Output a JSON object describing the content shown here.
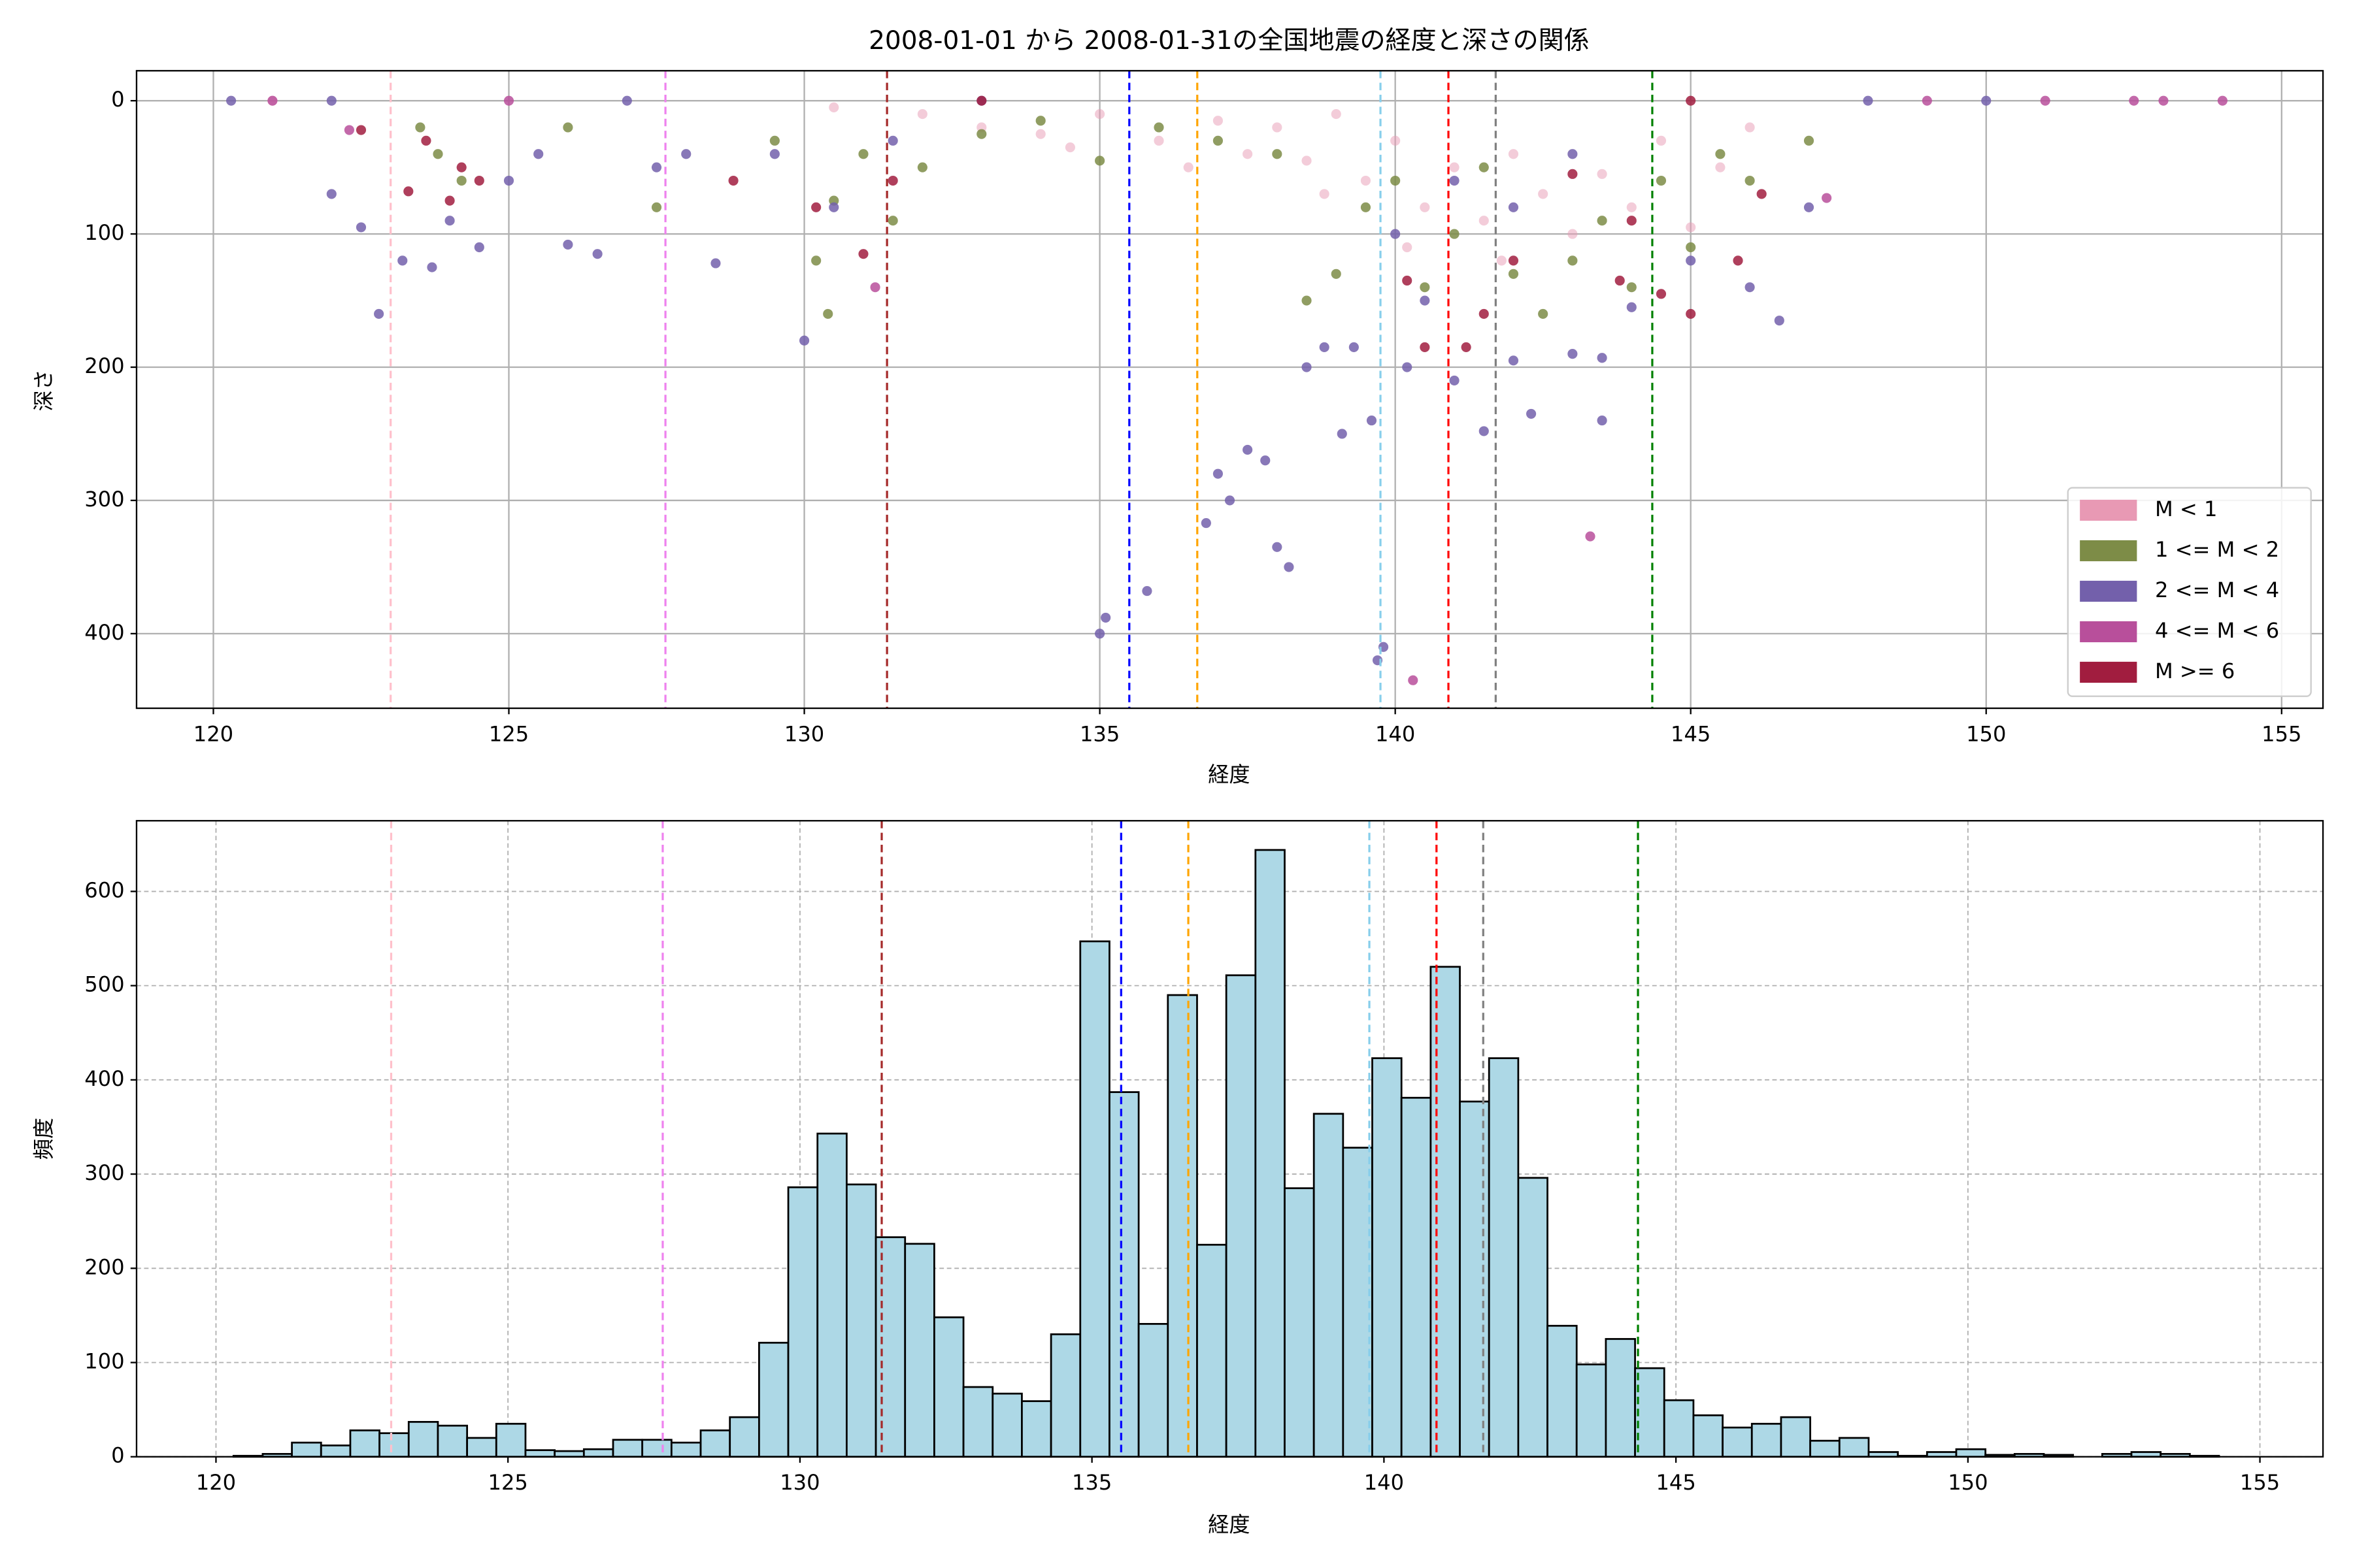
{
  "chart_data": [
    {
      "type": "scatter",
      "title": "2008-01-01 から 2008-01-31の全国地震の経度と深さの関係",
      "xlabel": "経度",
      "ylabel": "深さ",
      "xlim": [
        118.7,
        155.7
      ],
      "ylim": [
        456,
        -22.5
      ],
      "xticks": [
        120,
        125,
        130,
        135,
        140,
        145,
        150,
        155
      ],
      "yticks": [
        0,
        100,
        200,
        300,
        400
      ],
      "grid": true,
      "legend_loc": "lower right",
      "vlines": [
        {
          "x": 123.0,
          "color": "pink"
        },
        {
          "x": 127.65,
          "color": "violet"
        },
        {
          "x": 131.4,
          "color": "brown"
        },
        {
          "x": 135.5,
          "color": "blue"
        },
        {
          "x": 136.65,
          "color": "orange"
        },
        {
          "x": 139.75,
          "color": "skyblue"
        },
        {
          "x": 140.9,
          "color": "red"
        },
        {
          "x": 141.7,
          "color": "gray"
        },
        {
          "x": 144.35,
          "color": "green"
        }
      ],
      "series": [
        {
          "name": "M < 1",
          "color": "#e899b4",
          "x": [
            121.0,
            130.5,
            132,
            133,
            134,
            135,
            136,
            137,
            137.5,
            138,
            138.5,
            139,
            139.5,
            140,
            140.5,
            141,
            141.5,
            142,
            142.5,
            143,
            143.5,
            144,
            144.5,
            145,
            145.5,
            146,
            134.5,
            136.5,
            138.8,
            140.2,
            141.8
          ],
          "y": [
            0,
            5,
            10,
            20,
            25,
            10,
            30,
            15,
            40,
            20,
            45,
            10,
            60,
            30,
            80,
            50,
            90,
            40,
            70,
            100,
            55,
            80,
            30,
            95,
            50,
            20,
            35,
            50,
            70,
            110,
            120
          ]
        },
        {
          "name": "1 <= M < 2",
          "color": "#7d8c47",
          "x": [
            123.5,
            123.8,
            124.2,
            129.5,
            130.2,
            130.4,
            130.5,
            131,
            131.5,
            132,
            133,
            134,
            135,
            136,
            137,
            138,
            138.5,
            139,
            139.5,
            140,
            140.5,
            141,
            141.5,
            142,
            142.5,
            143,
            143.5,
            144,
            144.5,
            145,
            145.5,
            146,
            147,
            127.5,
            126
          ],
          "y": [
            20,
            40,
            60,
            30,
            120,
            160,
            75,
            40,
            90,
            50,
            25,
            15,
            45,
            20,
            30,
            40,
            150,
            130,
            80,
            60,
            140,
            100,
            50,
            130,
            160,
            120,
            90,
            140,
            60,
            110,
            40,
            60,
            30,
            80,
            20
          ]
        },
        {
          "name": "2 <= M < 4",
          "color": "#7360ab",
          "x": [
            120.3,
            122,
            122.5,
            122.8,
            123.2,
            123.7,
            124,
            124.5,
            125,
            125.5,
            126,
            126.5,
            127.5,
            128,
            128.5,
            129.5,
            130,
            130.5,
            131.5,
            135,
            135.1,
            135.8,
            136.8,
            137,
            137.2,
            137.5,
            137.8,
            138,
            138.2,
            138.5,
            138.8,
            139.1,
            139.3,
            139.6,
            139.7,
            139.8,
            140.2,
            140.5,
            141,
            141.5,
            142,
            142.3,
            143,
            143.5,
            143.5,
            144,
            145,
            146,
            146.5,
            147,
            148,
            150,
            140,
            141,
            142,
            143,
            122,
            127,
            133
          ],
          "y": [
            0,
            70,
            95,
            160,
            120,
            125,
            90,
            110,
            60,
            40,
            108,
            115,
            50,
            40,
            122,
            40,
            180,
            80,
            30,
            400,
            388,
            368,
            317,
            280,
            300,
            262,
            270,
            335,
            350,
            200,
            185,
            250,
            185,
            240,
            420,
            410,
            200,
            150,
            210,
            248,
            195,
            235,
            190,
            240,
            193,
            155,
            120,
            140,
            165,
            80,
            0,
            0,
            100,
            60,
            80,
            40,
            0,
            0,
            0
          ]
        },
        {
          "name": "4 <= M < 6",
          "color": "#b84f9b",
          "x": [
            122.3,
            131.2,
            140.3,
            143.3,
            147.3,
            153,
            154,
            149,
            151,
            152.5,
            121,
            125
          ],
          "y": [
            22,
            140,
            435,
            327,
            73,
            0,
            0,
            0,
            0,
            0,
            0,
            0
          ]
        },
        {
          "name": "M >= 6",
          "color": "#a11d3f",
          "x": [
            122.5,
            123.3,
            123.6,
            124,
            124.2,
            124.5,
            128.8,
            130.2,
            131,
            131.5,
            140.2,
            140.5,
            141.2,
            141.5,
            142,
            143,
            143.8,
            144,
            144.5,
            145,
            145.8,
            146.2,
            133,
            145
          ],
          "y": [
            22,
            68,
            30,
            75,
            50,
            60,
            60,
            80,
            115,
            60,
            135,
            185,
            185,
            160,
            120,
            55,
            135,
            90,
            145,
            160,
            120,
            70,
            0,
            0
          ]
        }
      ]
    },
    {
      "type": "histogram",
      "xlabel": "経度",
      "ylabel": "頻度",
      "color": "#add8e6",
      "edgecolor": "#000000",
      "xlim": [
        118.64,
        156.08
      ],
      "ylim": [
        0,
        675
      ],
      "xticks": [
        120,
        125,
        130,
        135,
        140,
        145,
        150,
        155
      ],
      "yticks": [
        0,
        100,
        200,
        300,
        400,
        500,
        600
      ],
      "grid": true,
      "vlines": [
        {
          "x": 123.0,
          "color": "pink"
        },
        {
          "x": 127.65,
          "color": "violet"
        },
        {
          "x": 131.4,
          "color": "brown"
        },
        {
          "x": 135.5,
          "color": "blue"
        },
        {
          "x": 136.65,
          "color": "orange"
        },
        {
          "x": 139.75,
          "color": "skyblue"
        },
        {
          "x": 140.9,
          "color": "red"
        },
        {
          "x": 141.7,
          "color": "gray"
        },
        {
          "x": 144.35,
          "color": "green"
        }
      ],
      "bins": [
        120.3,
        120.8,
        121.3,
        121.8,
        122.3,
        122.8,
        123.3,
        123.8,
        124.3,
        124.8,
        125.3,
        125.8,
        126.3,
        126.8,
        127.3,
        127.8,
        128.3,
        128.8,
        129.3,
        129.8,
        130.3,
        130.8,
        131.3,
        131.8,
        132.3,
        132.8,
        133.3,
        133.8,
        134.3,
        134.8,
        135.3,
        135.8,
        136.3,
        136.8,
        137.3,
        137.8,
        138.3,
        138.8,
        139.3,
        139.8,
        140.3,
        140.8,
        141.3,
        141.8,
        142.3,
        142.8,
        143.3,
        143.8,
        144.3,
        144.8,
        145.3,
        145.8,
        146.3,
        146.8,
        147.3,
        147.8,
        148.3,
        148.8,
        149.3,
        149.8,
        150.3,
        150.8,
        151.3,
        151.8,
        152.3,
        152.8,
        153.3,
        153.8,
        154.3
      ],
      "values": [
        1,
        3,
        15,
        12,
        28,
        25,
        37,
        33,
        20,
        35,
        7,
        6,
        8,
        18,
        18,
        15,
        28,
        42,
        121,
        286,
        343,
        289,
        233,
        226,
        148,
        74,
        67,
        59,
        130,
        547,
        387,
        141,
        490,
        225,
        511,
        644,
        285,
        364,
        328,
        423,
        381,
        520,
        377,
        423,
        296,
        139,
        98,
        125,
        94,
        60,
        44,
        31,
        35,
        42,
        17,
        20,
        5,
        1,
        5,
        8,
        2,
        3,
        2,
        0,
        3,
        5,
        3,
        1
      ]
    }
  ]
}
